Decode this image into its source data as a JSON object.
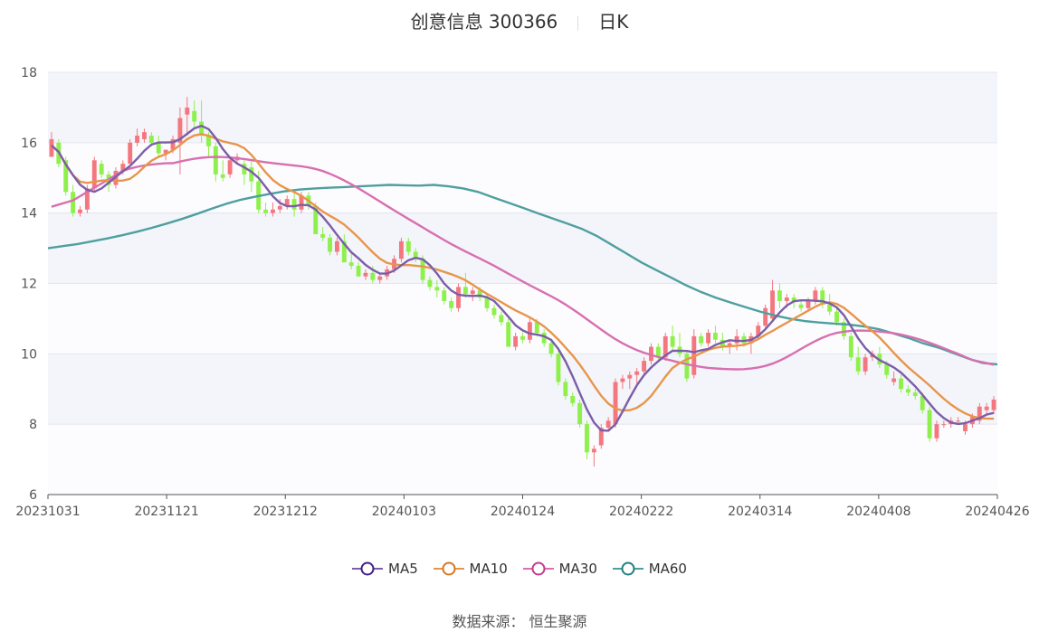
{
  "header": {
    "title": "创意信息 300366",
    "period": "日K"
  },
  "source": "数据来源： 恒生聚源",
  "colors": {
    "up": "#f4777f",
    "down": "#8ef04a",
    "ma5": "#7b5ea7",
    "ma10": "#e8954a",
    "ma30": "#d86fb0",
    "ma60": "#4e9f9f",
    "band": "#f3f5fa",
    "grid": "#e2e6ef"
  },
  "chart_data": {
    "type": "candlestick",
    "ylim": [
      6,
      18
    ],
    "yticks": [
      "6",
      "8",
      "10",
      "12",
      "14",
      "16",
      "18"
    ],
    "xticks": [
      "20231031",
      "20231121",
      "20231212",
      "20240103",
      "20240124",
      "20240222",
      "20240314",
      "20240408",
      "20240426"
    ],
    "legend": [
      "MA5",
      "MA10",
      "MA30",
      "MA60"
    ],
    "ohlc": [
      [
        15.6,
        16.3,
        15.6,
        16.1
      ],
      [
        16.0,
        16.1,
        15.3,
        15.4
      ],
      [
        15.5,
        15.6,
        14.5,
        14.6
      ],
      [
        14.6,
        14.8,
        13.9,
        14.0
      ],
      [
        14.0,
        14.2,
        13.9,
        14.1
      ],
      [
        14.1,
        14.8,
        14.0,
        14.7
      ],
      [
        14.7,
        15.6,
        14.6,
        15.5
      ],
      [
        15.4,
        15.5,
        15.0,
        15.1
      ],
      [
        15.1,
        15.2,
        14.6,
        14.8
      ],
      [
        14.8,
        15.3,
        14.7,
        15.2
      ],
      [
        15.2,
        15.5,
        15.1,
        15.4
      ],
      [
        15.4,
        16.1,
        15.4,
        16.0
      ],
      [
        16.0,
        16.4,
        15.9,
        16.2
      ],
      [
        16.1,
        16.4,
        16.0,
        16.3
      ],
      [
        16.2,
        16.3,
        15.9,
        16.0
      ],
      [
        16.0,
        16.2,
        15.6,
        15.7
      ],
      [
        15.7,
        15.8,
        15.5,
        15.8
      ],
      [
        15.8,
        16.2,
        15.7,
        16.1
      ],
      [
        16.0,
        17.0,
        15.1,
        16.7
      ],
      [
        16.8,
        17.3,
        16.2,
        17.0
      ],
      [
        16.9,
        17.2,
        16.4,
        16.6
      ],
      [
        16.6,
        17.2,
        16.0,
        16.2
      ],
      [
        16.2,
        16.3,
        15.6,
        15.9
      ],
      [
        15.9,
        16.0,
        14.9,
        15.1
      ],
      [
        15.1,
        15.5,
        14.9,
        15.0
      ],
      [
        15.1,
        15.6,
        15.0,
        15.5
      ],
      [
        15.5,
        15.7,
        15.4,
        15.6
      ],
      [
        15.4,
        15.5,
        14.8,
        15.1
      ],
      [
        15.3,
        15.5,
        14.6,
        14.9
      ],
      [
        14.9,
        15.2,
        14.0,
        14.1
      ],
      [
        14.1,
        14.3,
        13.9,
        14.0
      ],
      [
        14.0,
        14.3,
        13.9,
        14.1
      ],
      [
        14.1,
        14.4,
        14.0,
        14.2
      ],
      [
        14.2,
        14.5,
        14.1,
        14.4
      ],
      [
        14.4,
        14.6,
        13.9,
        14.1
      ],
      [
        14.1,
        14.6,
        14.0,
        14.5
      ],
      [
        14.5,
        14.6,
        14.1,
        14.2
      ],
      [
        14.2,
        14.3,
        13.4,
        13.4
      ],
      [
        13.4,
        13.6,
        13.2,
        13.3
      ],
      [
        13.3,
        13.4,
        12.8,
        12.9
      ],
      [
        12.9,
        13.3,
        12.8,
        13.2
      ],
      [
        13.2,
        13.4,
        12.6,
        12.6
      ],
      [
        12.6,
        12.9,
        12.4,
        12.5
      ],
      [
        12.5,
        12.6,
        12.2,
        12.2
      ],
      [
        12.2,
        12.4,
        12.1,
        12.3
      ],
      [
        12.3,
        12.5,
        12.0,
        12.1
      ],
      [
        12.1,
        12.3,
        12.0,
        12.2
      ],
      [
        12.2,
        12.5,
        12.1,
        12.4
      ],
      [
        12.4,
        12.8,
        12.3,
        12.7
      ],
      [
        12.7,
        13.3,
        12.6,
        13.2
      ],
      [
        13.2,
        13.3,
        12.8,
        12.9
      ],
      [
        12.9,
        13.0,
        12.6,
        12.7
      ],
      [
        12.7,
        12.8,
        12.0,
        12.1
      ],
      [
        12.1,
        12.2,
        11.8,
        11.9
      ],
      [
        11.9,
        12.1,
        11.6,
        11.8
      ],
      [
        11.8,
        11.9,
        11.4,
        11.5
      ],
      [
        11.5,
        11.6,
        11.2,
        11.3
      ],
      [
        11.3,
        12.0,
        11.2,
        11.9
      ],
      [
        11.9,
        12.3,
        11.6,
        11.7
      ],
      [
        11.7,
        11.9,
        11.5,
        11.8
      ],
      [
        11.8,
        11.9,
        11.5,
        11.6
      ],
      [
        11.6,
        11.7,
        11.2,
        11.3
      ],
      [
        11.3,
        11.4,
        11.0,
        11.1
      ],
      [
        11.1,
        11.2,
        10.8,
        10.9
      ],
      [
        10.9,
        11.0,
        10.2,
        10.2
      ],
      [
        10.2,
        10.6,
        10.1,
        10.5
      ],
      [
        10.5,
        10.6,
        10.3,
        10.4
      ],
      [
        10.4,
        11.0,
        10.3,
        10.9
      ],
      [
        10.9,
        11.0,
        10.5,
        10.6
      ],
      [
        10.6,
        10.7,
        10.2,
        10.3
      ],
      [
        10.3,
        10.4,
        9.9,
        10.0
      ],
      [
        10.0,
        10.1,
        9.1,
        9.2
      ],
      [
        9.2,
        9.3,
        8.7,
        8.8
      ],
      [
        8.8,
        8.9,
        8.5,
        8.6
      ],
      [
        8.6,
        8.7,
        7.9,
        8.0
      ],
      [
        8.0,
        8.1,
        7.0,
        7.2
      ],
      [
        7.2,
        7.4,
        6.8,
        7.3
      ],
      [
        7.4,
        8.0,
        7.3,
        7.9
      ],
      [
        7.9,
        8.2,
        7.8,
        8.1
      ],
      [
        8.0,
        9.3,
        7.9,
        9.2
      ],
      [
        9.2,
        9.4,
        9.0,
        9.3
      ],
      [
        9.3,
        9.5,
        9.0,
        9.4
      ],
      [
        9.4,
        9.6,
        9.1,
        9.5
      ],
      [
        9.5,
        9.9,
        9.4,
        9.8
      ],
      [
        9.8,
        10.3,
        9.7,
        10.2
      ],
      [
        10.2,
        10.3,
        9.8,
        9.9
      ],
      [
        9.9,
        10.6,
        9.8,
        10.5
      ],
      [
        10.5,
        10.8,
        10.1,
        10.2
      ],
      [
        10.2,
        10.6,
        9.9,
        10.0
      ],
      [
        10.0,
        10.1,
        9.2,
        9.3
      ],
      [
        9.4,
        10.7,
        9.3,
        10.5
      ],
      [
        10.5,
        10.6,
        10.2,
        10.3
      ],
      [
        10.3,
        10.7,
        10.2,
        10.6
      ],
      [
        10.6,
        10.8,
        10.3,
        10.4
      ],
      [
        10.4,
        10.6,
        10.1,
        10.2
      ],
      [
        10.2,
        10.4,
        10.0,
        10.3
      ],
      [
        10.3,
        10.7,
        10.1,
        10.5
      ],
      [
        10.5,
        10.6,
        10.2,
        10.3
      ],
      [
        10.3,
        10.6,
        10.0,
        10.5
      ],
      [
        10.5,
        10.9,
        10.4,
        10.8
      ],
      [
        10.8,
        11.4,
        10.7,
        11.3
      ],
      [
        11.0,
        12.1,
        10.9,
        11.8
      ],
      [
        11.8,
        12.0,
        11.3,
        11.5
      ],
      [
        11.5,
        11.7,
        11.3,
        11.6
      ],
      [
        11.6,
        11.7,
        11.3,
        11.5
      ],
      [
        11.4,
        11.5,
        11.2,
        11.3
      ],
      [
        11.3,
        11.6,
        11.2,
        11.5
      ],
      [
        11.5,
        11.9,
        11.4,
        11.8
      ],
      [
        11.8,
        11.9,
        11.3,
        11.4
      ],
      [
        11.4,
        11.7,
        11.1,
        11.2
      ],
      [
        11.2,
        11.3,
        10.8,
        10.9
      ],
      [
        10.9,
        11.0,
        10.4,
        10.5
      ],
      [
        10.5,
        10.6,
        9.8,
        9.9
      ],
      [
        9.9,
        10.2,
        9.4,
        9.5
      ],
      [
        9.5,
        10.0,
        9.4,
        9.9
      ],
      [
        9.9,
        10.1,
        9.8,
        10.0
      ],
      [
        10.0,
        10.2,
        9.6,
        9.7
      ],
      [
        9.7,
        9.8,
        9.3,
        9.4
      ],
      [
        9.2,
        9.5,
        9.1,
        9.3
      ],
      [
        9.3,
        9.4,
        8.9,
        9.0
      ],
      [
        9.0,
        9.1,
        8.8,
        8.9
      ],
      [
        8.9,
        9.0,
        8.7,
        8.8
      ],
      [
        8.8,
        8.9,
        8.3,
        8.4
      ],
      [
        8.4,
        8.5,
        7.5,
        7.6
      ],
      [
        7.6,
        8.1,
        7.5,
        8.0
      ],
      [
        8.0,
        8.1,
        7.9,
        8.0
      ],
      [
        8.0,
        8.2,
        7.9,
        8.1
      ],
      [
        8.1,
        8.2,
        8.0,
        8.1
      ],
      [
        7.8,
        8.1,
        7.7,
        8.0
      ],
      [
        8.0,
        8.3,
        7.9,
        8.2
      ],
      [
        8.1,
        8.6,
        8.0,
        8.5
      ],
      [
        8.4,
        8.6,
        8.3,
        8.5
      ],
      [
        8.4,
        8.8,
        8.3,
        8.7
      ]
    ],
    "ma60": [
      13.0,
      13.06,
      13.12,
      13.2,
      13.28,
      13.37,
      13.47,
      13.58,
      13.7,
      13.83,
      13.97,
      14.12,
      14.26,
      14.38,
      14.47,
      14.55,
      14.62,
      14.67,
      14.7,
      14.72,
      14.74,
      14.76,
      14.78,
      14.8,
      14.79,
      14.78,
      14.8,
      14.76,
      14.7,
      14.6,
      14.45,
      14.3,
      14.15,
      14.0,
      13.85,
      13.7,
      13.55,
      13.35,
      13.1,
      12.85,
      12.6,
      12.38,
      12.17,
      11.95,
      11.76,
      11.6,
      11.46,
      11.33,
      11.2,
      11.09,
      11.0,
      10.93,
      10.89,
      10.86,
      10.83,
      10.78,
      10.7,
      10.58,
      10.45,
      10.3,
      10.18,
      10.03,
      9.87,
      9.74,
      9.7
    ]
  }
}
